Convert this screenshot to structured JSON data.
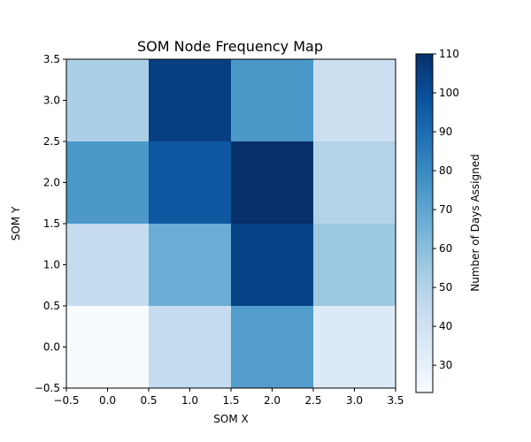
{
  "chart_data": {
    "type": "heatmap",
    "title": "SOM Node Frequency Map",
    "xlabel": "SOM X",
    "ylabel": "SOM Y",
    "xlim": [
      -0.5,
      3.5
    ],
    "ylim": [
      -0.5,
      3.5
    ],
    "x_ticks": [
      "−0.5",
      "0.0",
      "0.5",
      "1.0",
      "1.5",
      "2.0",
      "2.5",
      "3.0",
      "3.5"
    ],
    "y_ticks": [
      "−0.5",
      "0.0",
      "0.5",
      "1.0",
      "1.5",
      "2.0",
      "2.5",
      "3.0",
      "3.5"
    ],
    "x_tick_values": [
      -0.5,
      0.0,
      0.5,
      1.0,
      1.5,
      2.0,
      2.5,
      3.0,
      3.5
    ],
    "y_tick_values": [
      -0.5,
      0.0,
      0.5,
      1.0,
      1.5,
      2.0,
      2.5,
      3.0,
      3.5
    ],
    "x": [
      0,
      1,
      2,
      3
    ],
    "y": [
      0,
      1,
      2,
      3
    ],
    "grid": false,
    "colormap": "Blues",
    "colorbar": {
      "label": "Number of Days Assigned",
      "min": 23,
      "max": 110,
      "ticks": [
        "30",
        "40",
        "50",
        "60",
        "70",
        "80",
        "90",
        "100",
        "110"
      ],
      "tick_values": [
        30,
        40,
        50,
        60,
        70,
        80,
        90,
        100,
        110
      ]
    },
    "values": [
      [
        23,
        45,
        73,
        35
      ],
      [
        45,
        67,
        104,
        56
      ],
      [
        75,
        97,
        110,
        50
      ],
      [
        52,
        105,
        75,
        42
      ]
    ]
  }
}
